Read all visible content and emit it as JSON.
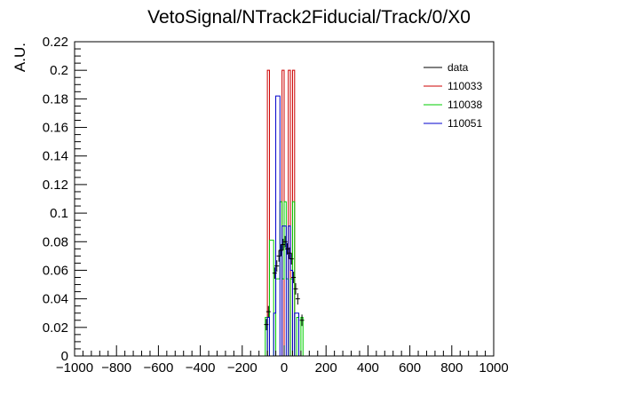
{
  "chart_data": {
    "type": "step-histogram",
    "title": "VetoSignal/NTrack2Fiducial/Track/0/X0",
    "xlabel": "",
    "ylabel": "A.U.",
    "xlim": [
      -1000,
      1000
    ],
    "ylim": [
      0,
      0.22
    ],
    "x_ticks": [
      -1000,
      -800,
      -600,
      -400,
      -200,
      0,
      200,
      400,
      600,
      800,
      1000
    ],
    "x_tick_labels": [
      "−1000",
      "−800",
      "−600",
      "−400",
      "−200",
      "0",
      "200",
      "400",
      "600",
      "800",
      "1000"
    ],
    "y_ticks": [
      0,
      0.02,
      0.04,
      0.06,
      0.08,
      0.1,
      0.12,
      0.14,
      0.16,
      0.18,
      0.2,
      0.22
    ],
    "y_tick_labels": [
      "0",
      "0.02",
      "0.04",
      "0.06",
      "0.08",
      "0.1",
      "0.12",
      "0.14",
      "0.16",
      "0.18",
      "0.2",
      "0.22"
    ],
    "grid": false,
    "legend_position": "top-right",
    "series": [
      {
        "name": "data",
        "color": "#000000",
        "style": "points-with-errors",
        "points": [
          {
            "x": -85,
            "y": 0.022,
            "err": 0.004
          },
          {
            "x": -75,
            "y": 0.031,
            "err": 0.004
          },
          {
            "x": -45,
            "y": 0.058,
            "err": 0.004
          },
          {
            "x": -35,
            "y": 0.063,
            "err": 0.004
          },
          {
            "x": -25,
            "y": 0.07,
            "err": 0.004
          },
          {
            "x": -15,
            "y": 0.074,
            "err": 0.004
          },
          {
            "x": -5,
            "y": 0.078,
            "err": 0.004
          },
          {
            "x": 5,
            "y": 0.08,
            "err": 0.004
          },
          {
            "x": 15,
            "y": 0.075,
            "err": 0.004
          },
          {
            "x": 25,
            "y": 0.072,
            "err": 0.004
          },
          {
            "x": 35,
            "y": 0.068,
            "err": 0.004
          },
          {
            "x": 45,
            "y": 0.055,
            "err": 0.004
          },
          {
            "x": 55,
            "y": 0.047,
            "err": 0.004
          },
          {
            "x": 65,
            "y": 0.04,
            "err": 0.004
          },
          {
            "x": 85,
            "y": 0.025,
            "err": 0.004
          }
        ]
      },
      {
        "name": "110033",
        "color": "#cc0000",
        "style": "step",
        "edges": [
          -90,
          -80,
          -70,
          -10,
          0,
          20,
          30,
          40,
          50,
          90
        ],
        "values": [
          0,
          0.2,
          0,
          0.2,
          0,
          0.2,
          0,
          0.2,
          0
        ]
      },
      {
        "name": "110038",
        "color": "#00cc00",
        "style": "step",
        "edges": [
          -90,
          -80,
          -70,
          -60,
          -50,
          -40,
          -30,
          -20,
          -10,
          0,
          10,
          20,
          30,
          40,
          50,
          60,
          70,
          80,
          90,
          100
        ],
        "values": [
          0.027,
          0,
          0.081,
          0.081,
          0,
          0.054,
          0.054,
          0.108,
          0.054,
          0.108,
          0.054,
          0,
          0.054,
          0.108,
          0,
          0.027,
          0,
          0.027,
          0
        ]
      },
      {
        "name": "110051",
        "color": "#0000cc",
        "style": "step",
        "edges": [
          -90,
          -80,
          -70,
          -60,
          -50,
          -40,
          -30,
          -20,
          -10,
          0,
          10,
          20,
          30,
          40,
          50,
          60,
          70,
          80,
          90,
          100
        ],
        "values": [
          0,
          0.027,
          0,
          0,
          0.03,
          0.182,
          0.182,
          0,
          0.091,
          0.091,
          0,
          0.091,
          0.06,
          0,
          0.03,
          0.03,
          0,
          0,
          0
        ]
      }
    ]
  }
}
